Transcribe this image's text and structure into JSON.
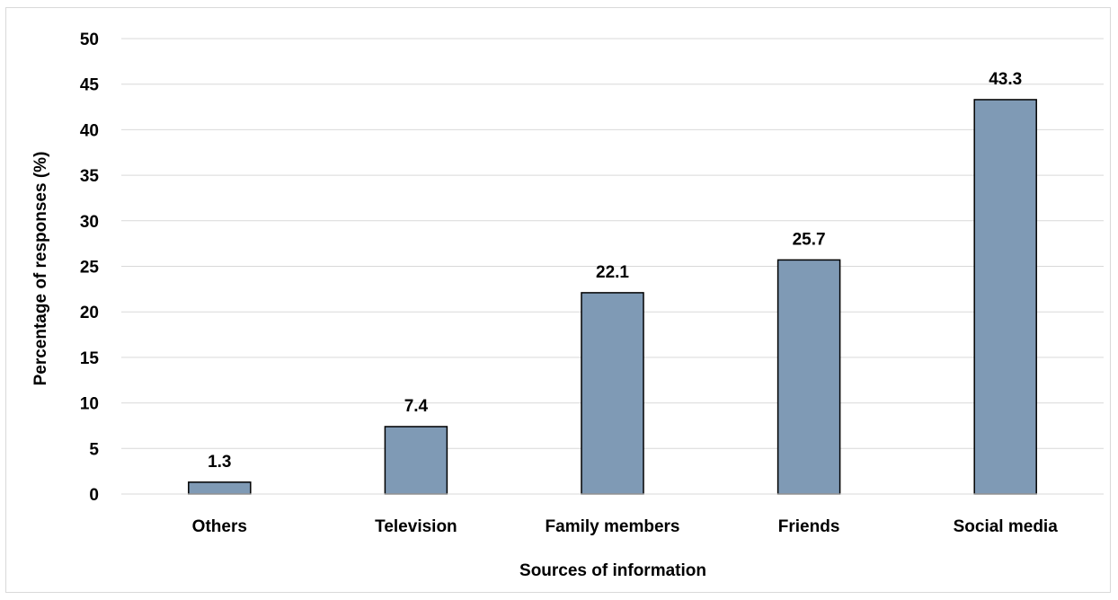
{
  "chart_data": {
    "type": "bar",
    "categories": [
      "Others",
      "Television",
      "Family members",
      "Friends",
      "Social media"
    ],
    "values": [
      1.3,
      7.4,
      22.1,
      25.7,
      43.3
    ],
    "data_labels": [
      "1.3",
      "7.4",
      "22.1",
      "25.7",
      "43.3"
    ],
    "title": "",
    "xlabel": "Sources of information",
    "ylabel": "Percentage of responses (%)",
    "ylim": [
      0,
      50
    ],
    "yticks": [
      0,
      5,
      10,
      15,
      20,
      25,
      30,
      35,
      40,
      45,
      50
    ],
    "grid": true,
    "legend": "none",
    "colors": {
      "bar_fill": "#7f9ab5",
      "bar_stroke": "#000000",
      "grid": "#d9d9d9"
    }
  }
}
